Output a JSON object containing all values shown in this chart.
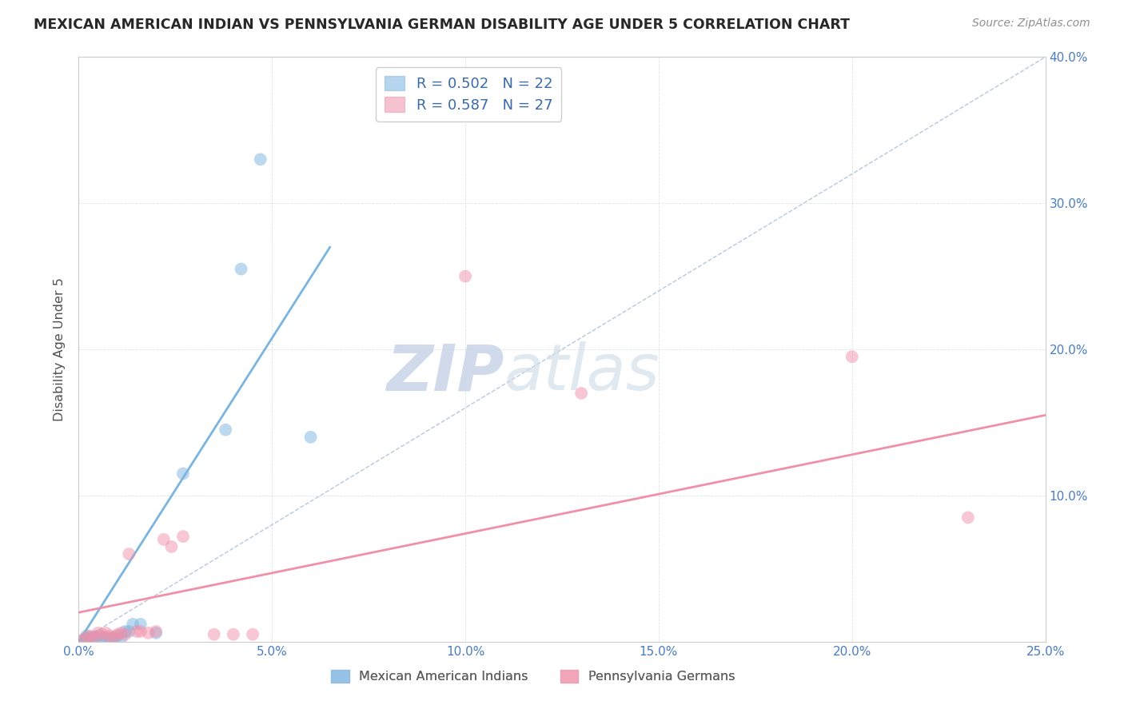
{
  "title": "MEXICAN AMERICAN INDIAN VS PENNSYLVANIA GERMAN DISABILITY AGE UNDER 5 CORRELATION CHART",
  "source": "Source: ZipAtlas.com",
  "ylabel": "Disability Age Under 5",
  "xlim": [
    0,
    0.25
  ],
  "ylim": [
    0,
    0.4
  ],
  "xticks": [
    0.0,
    0.05,
    0.1,
    0.15,
    0.2,
    0.25
  ],
  "yticks": [
    0.0,
    0.1,
    0.2,
    0.3,
    0.4
  ],
  "xtick_labels": [
    "0.0%",
    "5.0%",
    "10.0%",
    "15.0%",
    "20.0%",
    "25.0%"
  ],
  "ytick_labels": [
    "",
    "10.0%",
    "20.0%",
    "30.0%",
    "40.0%"
  ],
  "blue_points": [
    [
      0.001,
      0.001
    ],
    [
      0.002,
      0.002
    ],
    [
      0.002,
      0.004
    ],
    [
      0.003,
      0.003
    ],
    [
      0.004,
      0.003
    ],
    [
      0.005,
      0.004
    ],
    [
      0.006,
      0.003
    ],
    [
      0.007,
      0.003
    ],
    [
      0.008,
      0.002
    ],
    [
      0.009,
      0.003
    ],
    [
      0.01,
      0.004
    ],
    [
      0.011,
      0.002
    ],
    [
      0.012,
      0.007
    ],
    [
      0.013,
      0.007
    ],
    [
      0.014,
      0.012
    ],
    [
      0.016,
      0.012
    ],
    [
      0.02,
      0.006
    ],
    [
      0.027,
      0.115
    ],
    [
      0.038,
      0.145
    ],
    [
      0.042,
      0.255
    ],
    [
      0.047,
      0.33
    ],
    [
      0.06,
      0.14
    ]
  ],
  "pink_points": [
    [
      0.001,
      0.001
    ],
    [
      0.002,
      0.003
    ],
    [
      0.003,
      0.004
    ],
    [
      0.004,
      0.003
    ],
    [
      0.005,
      0.006
    ],
    [
      0.006,
      0.005
    ],
    [
      0.007,
      0.006
    ],
    [
      0.008,
      0.004
    ],
    [
      0.009,
      0.003
    ],
    [
      0.01,
      0.005
    ],
    [
      0.011,
      0.006
    ],
    [
      0.012,
      0.005
    ],
    [
      0.013,
      0.06
    ],
    [
      0.015,
      0.007
    ],
    [
      0.016,
      0.007
    ],
    [
      0.018,
      0.006
    ],
    [
      0.02,
      0.007
    ],
    [
      0.022,
      0.07
    ],
    [
      0.024,
      0.065
    ],
    [
      0.027,
      0.072
    ],
    [
      0.035,
      0.005
    ],
    [
      0.04,
      0.005
    ],
    [
      0.045,
      0.005
    ],
    [
      0.1,
      0.25
    ],
    [
      0.13,
      0.17
    ],
    [
      0.2,
      0.195
    ],
    [
      0.23,
      0.085
    ]
  ],
  "blue_line_x": [
    0.0,
    0.065
  ],
  "blue_line_y": [
    0.0,
    0.27
  ],
  "pink_line_x": [
    0.0,
    0.25
  ],
  "pink_line_y": [
    0.02,
    0.155
  ],
  "diagonal_line": [
    [
      0.0,
      0.0
    ],
    [
      0.25,
      0.4
    ]
  ],
  "blue_color": "#7ab4e0",
  "pink_color": "#f090a8",
  "diagonal_color": "#b8c8d8",
  "watermark_zip": "ZIP",
  "watermark_atlas": "atlas",
  "background_color": "#ffffff",
  "grid_color": "#dde2ec"
}
